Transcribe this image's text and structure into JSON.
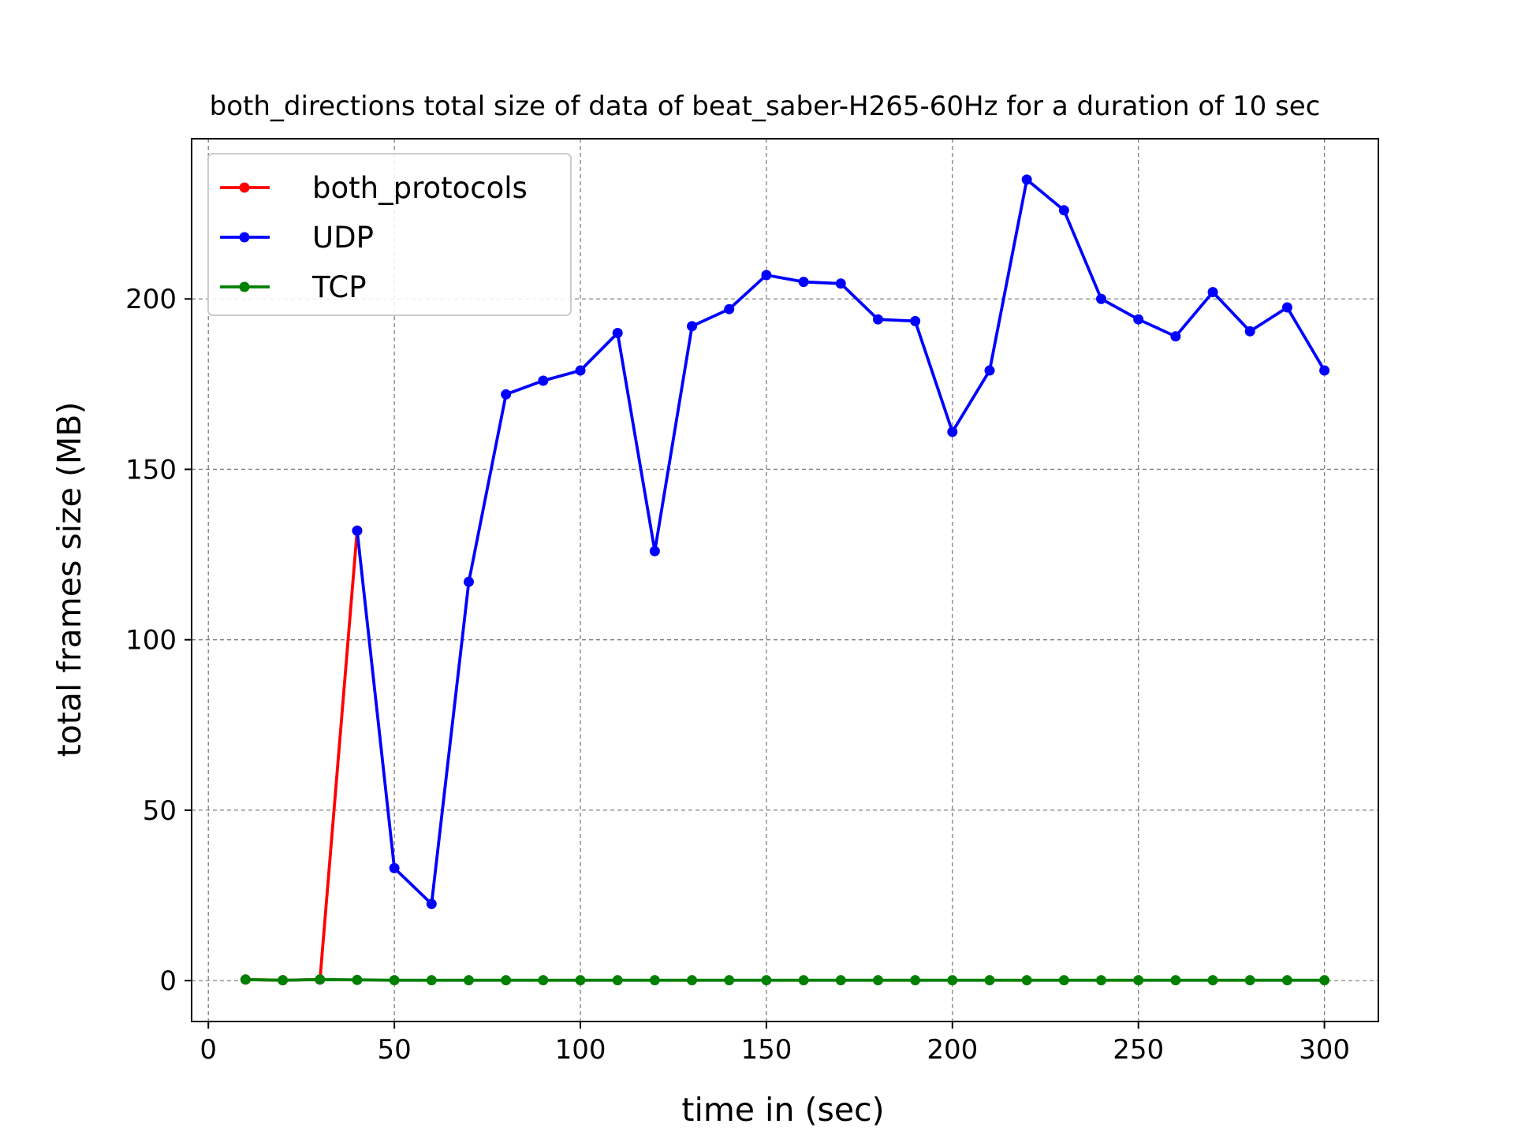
{
  "chart_data": {
    "type": "line",
    "title": "both_directions total size of data of beat_saber-H265-60Hz for a duration of 10 sec",
    "xlabel": "time in (sec)",
    "ylabel": "total frames size (MB)",
    "xlim": [
      -4.5,
      314.5
    ],
    "ylim": [
      -12,
      247
    ],
    "xticks": [
      0,
      50,
      100,
      150,
      200,
      250,
      300
    ],
    "yticks": [
      0,
      50,
      100,
      150,
      200
    ],
    "grid": true,
    "legend_position": "top-left",
    "series": [
      {
        "name": "both_protocols",
        "color": "#ff0000",
        "x": [
          10,
          20,
          30,
          40
        ],
        "y": [
          0.3,
          0.1,
          0.3,
          132
        ]
      },
      {
        "name": "UDP",
        "color": "#0000ff",
        "x": [
          40,
          50,
          60,
          70,
          80,
          90,
          100,
          110,
          120,
          130,
          140,
          150,
          160,
          170,
          180,
          190,
          200,
          210,
          220,
          230,
          240,
          250,
          260,
          270,
          280,
          290,
          300
        ],
        "y": [
          132,
          33,
          22.5,
          117,
          172,
          176,
          179,
          190,
          126,
          192,
          197,
          207,
          205,
          204.5,
          194,
          193.5,
          161,
          179,
          235,
          226,
          200,
          194,
          189,
          202,
          190.5,
          197.5,
          179
        ]
      },
      {
        "name": "TCP",
        "color": "#008000",
        "x": [
          10,
          20,
          30,
          40,
          50,
          60,
          70,
          80,
          90,
          100,
          110,
          120,
          130,
          140,
          150,
          160,
          170,
          180,
          190,
          200,
          210,
          220,
          230,
          240,
          250,
          260,
          270,
          280,
          290,
          300
        ],
        "y": [
          0.3,
          0.1,
          0.3,
          0.2,
          0.1,
          0.1,
          0.1,
          0.1,
          0.1,
          0.1,
          0.1,
          0.1,
          0.1,
          0.1,
          0.1,
          0.1,
          0.1,
          0.1,
          0.1,
          0.1,
          0.1,
          0.1,
          0.1,
          0.1,
          0.1,
          0.1,
          0.1,
          0.1,
          0.1,
          0.1
        ]
      }
    ]
  }
}
